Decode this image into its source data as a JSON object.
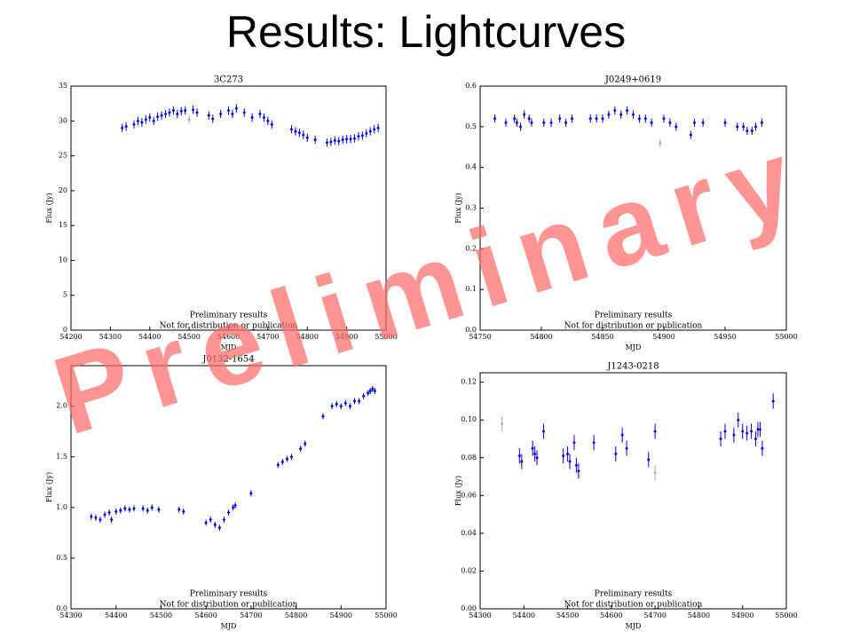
{
  "title": "Results: Lightcurves",
  "watermark": "Preliminary",
  "chart_data": [
    {
      "type": "scatter",
      "title": "3C273",
      "xlabel": "MJD",
      "ylabel": "Flux (Jy)",
      "annotations": [
        "Preliminary results",
        "Not for distribution or publication"
      ],
      "xlim": [
        54200,
        55000
      ],
      "xticks": [
        54200,
        54300,
        54400,
        54500,
        54600,
        54700,
        54800,
        54900,
        55000
      ],
      "ylim": [
        0,
        35
      ],
      "yticks": [
        0,
        5,
        10,
        15,
        20,
        25,
        30,
        35
      ],
      "yerr": 0.6,
      "series": [
        {
          "color": "#0000dd",
          "x": [
            54330,
            54340,
            54360,
            54370,
            54380,
            54390,
            54400,
            54410,
            54420,
            54430,
            54440,
            54450,
            54460,
            54470,
            54480,
            54490,
            54510,
            54520,
            54550,
            54560,
            54580,
            54600,
            54610,
            54620,
            54640,
            54660,
            54680,
            54690,
            54700,
            54710,
            54760,
            54770,
            54780,
            54790,
            54800,
            54820,
            54850,
            54860,
            54870,
            54880,
            54890,
            54900,
            54910,
            54920,
            54930,
            54940,
            54950,
            54960,
            54970,
            54980
          ],
          "values": [
            29,
            29.2,
            29.5,
            30,
            29.8,
            30.2,
            30.5,
            30,
            30.6,
            30.8,
            31,
            31.2,
            31.5,
            31,
            31.4,
            31.5,
            31.6,
            31.2,
            30.8,
            30.3,
            31,
            31.5,
            31,
            31.8,
            31.2,
            30.5,
            31,
            30.5,
            30,
            29.5,
            28.8,
            28.5,
            28.3,
            28,
            27.6,
            27.3,
            26.9,
            27,
            27.2,
            27.1,
            27.3,
            27.4,
            27.4,
            27.5,
            27.8,
            27.9,
            28.2,
            28.5,
            28.8,
            29
          ]
        },
        {
          "color": "#aaaaaa",
          "x": [
            54500
          ],
          "values": [
            30.2
          ]
        }
      ]
    },
    {
      "type": "scatter",
      "title": "J0249+0619",
      "xlabel": "MJD",
      "ylabel": "Flux (Jy)",
      "annotations": [
        "Preliminary results",
        "Not for distribution or publication"
      ],
      "xlim": [
        54750,
        55000
      ],
      "xticks": [
        54750,
        54800,
        54850,
        54900,
        54950,
        55000
      ],
      "ylim": [
        0,
        0.6
      ],
      "yticks": [
        {
          "value": 0,
          "label": "0.0"
        },
        0.1,
        0.2,
        0.3,
        0.4,
        0.5,
        0.6
      ],
      "yerr": 0.01,
      "series": [
        {
          "color": "#0000dd",
          "x": [
            54762,
            54771,
            54778,
            54780,
            54783,
            54786,
            54790,
            54792,
            54802,
            54808,
            54815,
            54820,
            54825,
            54840,
            54845,
            54850,
            54855,
            54860,
            54865,
            54870,
            54875,
            54880,
            54885,
            54890,
            54900,
            54905,
            54910,
            54922,
            54925,
            54932,
            54950,
            54960,
            54965,
            54968,
            54972,
            54975,
            54980
          ],
          "values": [
            0.52,
            0.51,
            0.52,
            0.51,
            0.5,
            0.53,
            0.52,
            0.51,
            0.51,
            0.51,
            0.52,
            0.51,
            0.52,
            0.52,
            0.52,
            0.52,
            0.53,
            0.54,
            0.53,
            0.54,
            0.53,
            0.52,
            0.52,
            0.51,
            0.52,
            0.51,
            0.5,
            0.48,
            0.51,
            0.51,
            0.51,
            0.5,
            0.5,
            0.49,
            0.49,
            0.5,
            0.51
          ]
        },
        {
          "color": "#aaaaaa",
          "x": [
            54897
          ],
          "values": [
            0.46
          ]
        }
      ]
    },
    {
      "type": "scatter",
      "title": "J0132-1654",
      "xlabel": "MJD",
      "ylabel": "Flux (Jy)",
      "annotations": [
        "Preliminary results",
        "Not for distribution or publication"
      ],
      "xlim": [
        54300,
        55000
      ],
      "xticks": [
        54300,
        54400,
        54500,
        54600,
        54700,
        54800,
        54900,
        55000
      ],
      "ylim": [
        0,
        2.4
      ],
      "yticks": [
        {
          "value": 0,
          "label": "0.0"
        },
        0.5,
        {
          "value": 1,
          "label": "1.0"
        },
        1.5,
        {
          "value": 2,
          "label": "2.0"
        }
      ],
      "yerr": 0.03,
      "series": [
        {
          "color": "#0000dd",
          "x": [
            54345,
            54355,
            54365,
            54375,
            54385,
            54390,
            54400,
            54410,
            54420,
            54430,
            54440,
            54460,
            54470,
            54480,
            54495,
            54540,
            54550,
            54600,
            54610,
            54620,
            54630,
            54640,
            54650,
            54660,
            54665,
            54700,
            54760,
            54770,
            54780,
            54790,
            54810,
            54820,
            54860,
            54880,
            54890,
            54900,
            54910,
            54920,
            54930,
            54940,
            54950,
            54960,
            54965,
            54970,
            54975
          ],
          "values": [
            0.91,
            0.9,
            0.88,
            0.93,
            0.95,
            0.88,
            0.96,
            0.97,
            0.99,
            0.98,
            0.99,
            0.99,
            0.97,
            1.0,
            0.98,
            0.98,
            0.96,
            0.85,
            0.88,
            0.83,
            0.8,
            0.88,
            0.95,
            1.0,
            1.02,
            1.14,
            1.42,
            1.45,
            1.48,
            1.5,
            1.58,
            1.63,
            1.9,
            2.0,
            2.02,
            2.0,
            2.03,
            2.0,
            2.05,
            2.05,
            2.1,
            2.13,
            2.15,
            2.17,
            2.15
          ]
        }
      ]
    },
    {
      "type": "scatter",
      "title": "J1243-0218",
      "xlabel": "MJD",
      "ylabel": "Flux (Jy)",
      "annotations": [
        "Preliminary results",
        "Not for distribution or publication"
      ],
      "xlim": [
        54300,
        55000
      ],
      "xticks": [
        54300,
        54400,
        54500,
        54600,
        54700,
        54800,
        54900,
        55000
      ],
      "ylim": [
        0,
        0.125
      ],
      "yticks": [
        {
          "value": 0,
          "label": "0.00"
        },
        0.02,
        0.04,
        0.06,
        0.08,
        {
          "value": 0.1,
          "label": "0.10"
        },
        0.12
      ],
      "yerr": 0.004,
      "series": [
        {
          "color": "#0000dd",
          "x": [
            54390,
            54395,
            54420,
            54425,
            54430,
            54445,
            54490,
            54500,
            54505,
            54515,
            54520,
            54525,
            54560,
            54610,
            54625,
            54635,
            54685,
            54700,
            54850,
            54860,
            54880,
            54890,
            54900,
            54910,
            54920,
            54930,
            54935,
            54940,
            54945,
            54970
          ],
          "values": [
            0.081,
            0.078,
            0.085,
            0.082,
            0.08,
            0.094,
            0.081,
            0.082,
            0.078,
            0.088,
            0.076,
            0.073,
            0.088,
            0.082,
            0.092,
            0.085,
            0.079,
            0.094,
            0.09,
            0.094,
            0.092,
            0.1,
            0.094,
            0.093,
            0.094,
            0.09,
            0.095,
            0.095,
            0.085,
            0.11
          ]
        },
        {
          "color": "#aaaaaa",
          "x": [
            54350,
            54700
          ],
          "values": [
            0.098,
            0.072
          ]
        }
      ]
    }
  ]
}
